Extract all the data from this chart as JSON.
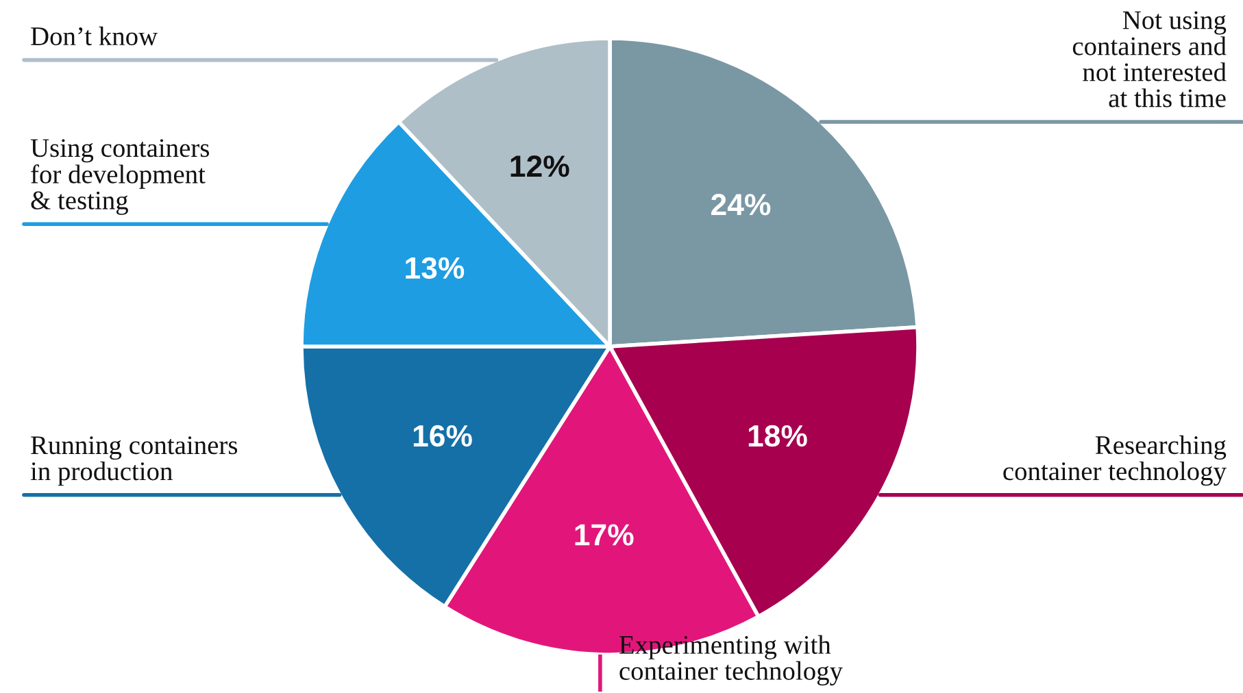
{
  "chart_data": {
    "type": "pie",
    "categories": [
      "Not using\ncontainers and\nnot interested\nat this time",
      "Researching\ncontainer technology",
      "Experimenting with\ncontainer technology",
      "Running containers\nin production",
      "Using containers\nfor development\n& testing",
      "Don’t know"
    ],
    "values": [
      24,
      18,
      17,
      16,
      13,
      12
    ],
    "value_labels": [
      "24%",
      "18%",
      "17%",
      "16%",
      "13%",
      "12%"
    ],
    "colors": [
      "#7a98a4",
      "#a6004f",
      "#e2167a",
      "#1570a8",
      "#1e9de2",
      "#aebfc8"
    ]
  }
}
